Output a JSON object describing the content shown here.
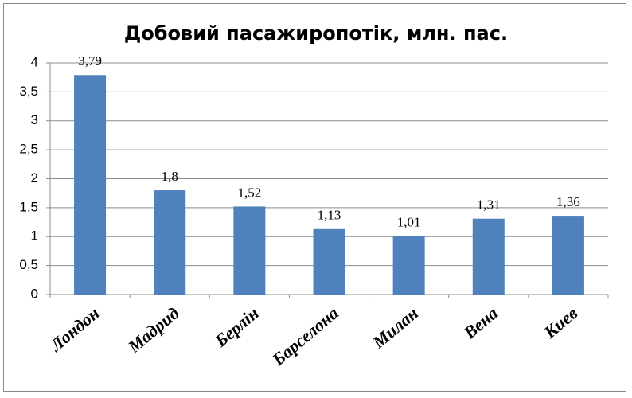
{
  "chart_data": {
    "type": "bar",
    "title": "Добовий пасажиропотік, млн. пас.",
    "categories": [
      "Лондон",
      "Мадрид",
      "Берлін",
      "Барселона",
      "Милан",
      "Вена",
      "Киев"
    ],
    "values": [
      3.79,
      1.8,
      1.52,
      1.13,
      1.01,
      1.31,
      1.36
    ],
    "value_labels": [
      "3,79",
      "1,8",
      "1,52",
      "1,13",
      "1,01",
      "1,31",
      "1,36"
    ],
    "color": "#4f81bd",
    "ylim": [
      0,
      4
    ],
    "yticks": [
      0,
      {
        "value": 0.5,
        "label": "0,5"
      },
      1,
      {
        "value": 1.5,
        "label": "1,5"
      },
      2,
      {
        "value": 2.5,
        "label": "2,5"
      },
      3,
      {
        "value": 3.5,
        "label": "3,5"
      },
      4
    ],
    "grid": true
  }
}
